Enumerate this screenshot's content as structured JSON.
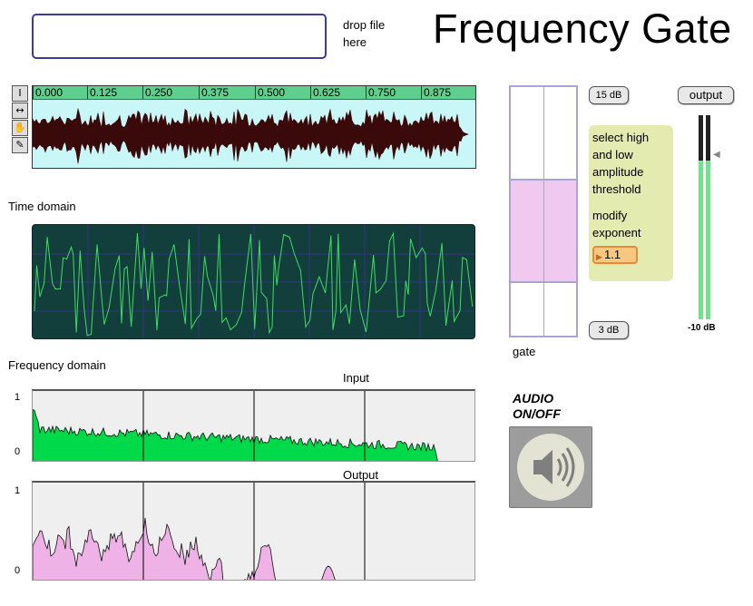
{
  "header": {
    "title": "Frequency Gate",
    "drop_label": "drop file here"
  },
  "waveform": {
    "ruler_labels": [
      "0.000",
      "0.125",
      "0.250",
      "0.375",
      "0.500",
      "0.625",
      "0.750",
      "0.875"
    ],
    "tools": [
      "select-tool-icon",
      "move-tool-icon",
      "hand-tool-icon",
      "pencil-tool-icon"
    ],
    "colors": {
      "background": "#c9f6f6",
      "ruler": "#5ecf8f",
      "wave": "#3a0a0a"
    }
  },
  "time_domain": {
    "label": "Time domain",
    "colors": {
      "background": "#123f3b",
      "trace": "#3fdc62",
      "grid": "#3a2f88"
    }
  },
  "frequency_domain": {
    "label": "Frequency domain",
    "input_label": "Input",
    "output_label": "Output",
    "axis_max": "1",
    "axis_min": "0",
    "colors": {
      "input_fill": "#00d94a",
      "output_fill": "#efb2e6",
      "background": "#efefef"
    }
  },
  "gate": {
    "label": "gate",
    "high_threshold": "15 dB",
    "low_threshold": "3 dB",
    "range_high_fraction": 0.63,
    "range_low_fraction": 0.21,
    "colors": {
      "range": "#efc9f0",
      "border": "#a9a3d6"
    }
  },
  "info": {
    "instruction": "select high and low amplitude threshold",
    "exponent_label": "modify exponent",
    "exponent_value": "1.1"
  },
  "audio": {
    "label_line1": "AUDIO",
    "label_line2": "ON/OFF",
    "icon": "speaker-icon"
  },
  "output": {
    "button_label": "output",
    "meter_label": "-10 dB",
    "meter_level_fraction": 0.78
  }
}
